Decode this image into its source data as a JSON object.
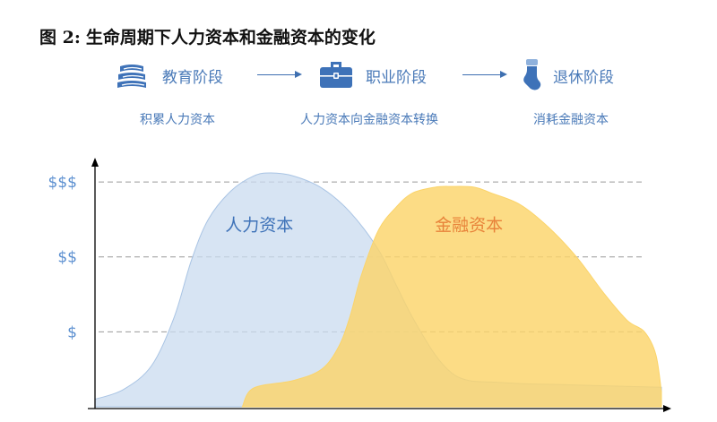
{
  "figure": {
    "number_label": "图 2:",
    "title": "生命周期下人力资本和金融资本的变化"
  },
  "stages": [
    {
      "label": "教育阶段",
      "icon": "books-icon",
      "description": "积累人力资本"
    },
    {
      "label": "职业阶段",
      "icon": "briefcase-icon",
      "description": "人力资本向金融资本转换"
    },
    {
      "label": "退休阶段",
      "icon": "stocking-icon",
      "description": "消耗金融资本"
    }
  ],
  "colors": {
    "stage_text": "#4a7ab8",
    "arrow": "#3e6fb0",
    "human_capital_fill": "#c9dbef",
    "human_capital_stroke": "#a9c4e4",
    "financial_capital_fill": "#fbd46a",
    "financial_capital_label": "#e8833a",
    "human_capital_label": "#3e72b8",
    "tick_label": "#5b8fd0",
    "gridline": "#9a9a9a"
  },
  "chart_data": {
    "type": "area",
    "title": "",
    "xlabel": "",
    "ylabel": "",
    "y_ticks": [
      {
        "label": "$",
        "value": 1
      },
      {
        "label": "$$",
        "value": 2
      },
      {
        "label": "$$$",
        "value": 3
      }
    ],
    "ylim": [
      0,
      3.3
    ],
    "xlim": [
      0,
      100
    ],
    "grid": "horizontal dashed at y ticks",
    "series": [
      {
        "name": "人力资本",
        "x": [
          0,
          5,
          10,
          14,
          17,
          20,
          24,
          28,
          31,
          35,
          40,
          45,
          50,
          53,
          56,
          60,
          63,
          66,
          70,
          75,
          80,
          90,
          100
        ],
        "values": [
          0.1,
          0.23,
          0.55,
          1.2,
          1.95,
          2.5,
          2.88,
          3.08,
          3.12,
          3.08,
          2.92,
          2.6,
          2.1,
          1.65,
          1.2,
          0.7,
          0.45,
          0.35,
          0.33,
          0.31,
          0.3,
          0.28,
          0.26
        ]
      },
      {
        "name": "金融资本",
        "x": [
          26,
          28,
          35,
          40,
          43,
          45,
          47,
          50,
          53,
          56,
          60,
          63,
          67,
          70,
          75,
          80,
          85,
          90,
          94,
          97,
          99,
          100
        ],
        "values": [
          0,
          0.25,
          0.35,
          0.5,
          0.8,
          1.2,
          1.75,
          2.35,
          2.65,
          2.85,
          2.93,
          2.94,
          2.93,
          2.85,
          2.7,
          2.4,
          2.0,
          1.5,
          1.15,
          1.0,
          0.7,
          0.2
        ]
      }
    ]
  }
}
